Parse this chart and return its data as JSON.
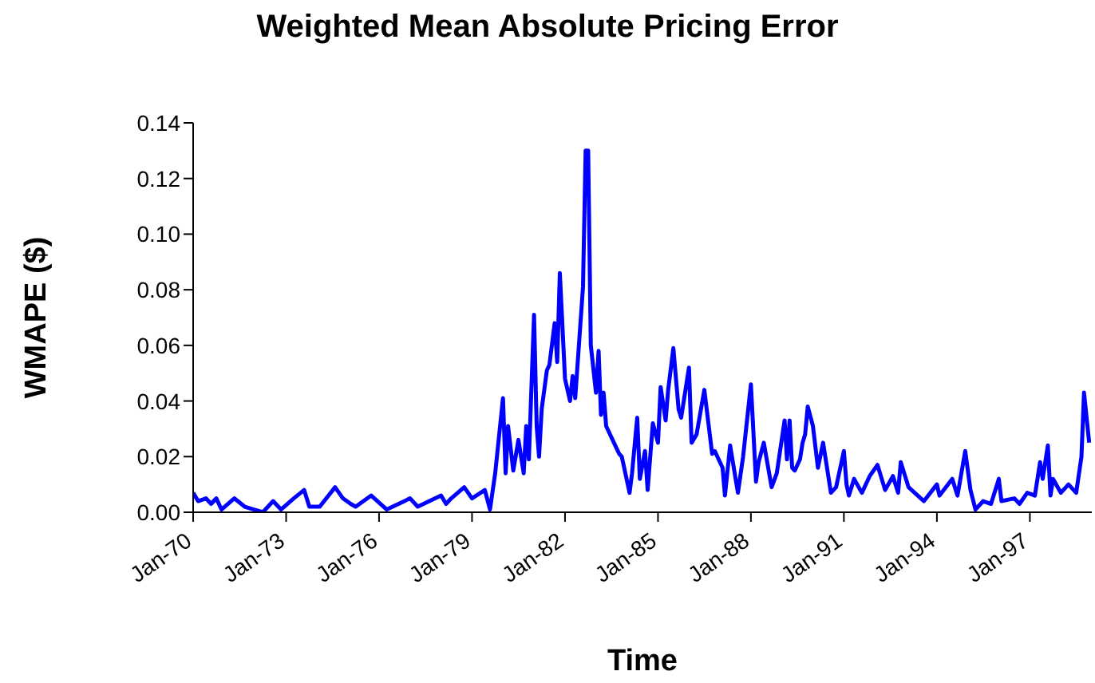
{
  "chart_data": {
    "type": "line",
    "title": "Weighted Mean Absolute Pricing Error",
    "xlabel": "Time",
    "ylabel": "WMAPE ($)",
    "x": [
      "1970-01",
      "1970-03",
      "1970-06",
      "1970-08",
      "1970-10",
      "1970-12",
      "1971-05",
      "1971-09",
      "1972-04",
      "1972-08",
      "1972-11",
      "1973-04",
      "1973-08",
      "1973-10",
      "1974-02",
      "1974-08",
      "1974-11",
      "1975-02",
      "1975-04",
      "1975-10",
      "1976-04",
      "1977-01",
      "1977-04",
      "1978-01",
      "1978-03",
      "1978-05",
      "1978-10",
      "1979-01",
      "1979-06",
      "1979-08",
      "1979-10",
      "1980-01",
      "1980-02",
      "1980-03",
      "1980-05",
      "1980-07",
      "1980-09",
      "1980-10",
      "1980-11",
      "1981-01",
      "1981-02",
      "1981-03",
      "1981-04",
      "1981-06",
      "1981-07",
      "1981-09",
      "1981-10",
      "1981-11",
      "1982-01",
      "1982-03",
      "1982-04",
      "1982-05",
      "1982-08",
      "1982-09",
      "1982-10",
      "1982-11",
      "1983-01",
      "1983-02",
      "1983-03",
      "1983-04",
      "1983-05",
      "1983-10",
      "1983-11",
      "1984-02",
      "1984-03",
      "1984-05",
      "1984-06",
      "1984-08",
      "1984-09",
      "1984-11",
      "1985-01",
      "1985-02",
      "1985-04",
      "1985-05",
      "1985-07",
      "1985-09",
      "1985-10",
      "1986-01",
      "1986-02",
      "1986-04",
      "1986-07",
      "1986-10",
      "1986-11",
      "1987-02",
      "1987-03",
      "1987-05",
      "1987-08",
      "1987-10",
      "1988-01",
      "1988-03",
      "1988-04",
      "1988-06",
      "1988-09",
      "1988-11",
      "1989-02",
      "1989-03",
      "1989-04",
      "1989-05",
      "1989-06",
      "1989-08",
      "1989-09",
      "1989-10",
      "1989-11",
      "1990-01",
      "1990-03",
      "1990-05",
      "1990-08",
      "1990-10",
      "1991-01",
      "1991-02",
      "1991-03",
      "1991-05",
      "1991-08",
      "1991-11",
      "1992-02",
      "1992-05",
      "1992-08",
      "1992-10",
      "1992-11",
      "1993-02",
      "1993-08",
      "1994-01",
      "1994-02",
      "1994-07",
      "1994-09",
      "1994-12",
      "1995-02",
      "1995-04",
      "1995-07",
      "1995-10",
      "1996-01",
      "1996-02",
      "1996-07",
      "1996-09",
      "1996-12",
      "1997-03",
      "1997-05",
      "1997-06",
      "1997-08",
      "1997-09",
      "1997-10",
      "1998-01",
      "1998-04",
      "1998-07",
      "1998-09",
      "1998-10",
      "1998-12"
    ],
    "series": [
      {
        "color": "#0000ff",
        "values": [
          0.007,
          0.004,
          0.005,
          0.003,
          0.005,
          0.001,
          0.005,
          0.002,
          0.0,
          0.004,
          0.001,
          0.005,
          0.008,
          0.002,
          0.002,
          0.009,
          0.005,
          0.003,
          0.002,
          0.006,
          0.001,
          0.005,
          0.002,
          0.006,
          0.003,
          0.005,
          0.009,
          0.005,
          0.008,
          0.001,
          0.014,
          0.041,
          0.014,
          0.031,
          0.015,
          0.026,
          0.014,
          0.031,
          0.019,
          0.071,
          0.031,
          0.02,
          0.037,
          0.051,
          0.053,
          0.068,
          0.054,
          0.086,
          0.048,
          0.04,
          0.049,
          0.041,
          0.081,
          0.13,
          0.13,
          0.06,
          0.043,
          0.058,
          0.035,
          0.043,
          0.031,
          0.021,
          0.02,
          0.007,
          0.014,
          0.034,
          0.012,
          0.022,
          0.008,
          0.032,
          0.025,
          0.045,
          0.033,
          0.044,
          0.059,
          0.037,
          0.034,
          0.052,
          0.025,
          0.028,
          0.044,
          0.021,
          0.022,
          0.016,
          0.006,
          0.024,
          0.007,
          0.02,
          0.046,
          0.011,
          0.018,
          0.025,
          0.009,
          0.014,
          0.033,
          0.019,
          0.033,
          0.016,
          0.015,
          0.019,
          0.025,
          0.028,
          0.038,
          0.031,
          0.016,
          0.025,
          0.007,
          0.009,
          0.022,
          0.01,
          0.006,
          0.012,
          0.007,
          0.013,
          0.017,
          0.008,
          0.013,
          0.007,
          0.018,
          0.009,
          0.004,
          0.01,
          0.006,
          0.012,
          0.006,
          0.022,
          0.008,
          0.001,
          0.004,
          0.003,
          0.012,
          0.004,
          0.005,
          0.003,
          0.007,
          0.006,
          0.018,
          0.012,
          0.024,
          0.006,
          0.012,
          0.007,
          0.01,
          0.007,
          0.02,
          0.043,
          0.025
        ]
      }
    ],
    "xlim": [
      "1970-01",
      "1999-01"
    ],
    "xticks": [
      {
        "value": "1970-01",
        "label": "Jan-70"
      },
      {
        "value": "1973-01",
        "label": "Jan-73"
      },
      {
        "value": "1976-01",
        "label": "Jan-76"
      },
      {
        "value": "1979-01",
        "label": "Jan-79"
      },
      {
        "value": "1982-01",
        "label": "Jan-82"
      },
      {
        "value": "1985-01",
        "label": "Jan-85"
      },
      {
        "value": "1988-01",
        "label": "Jan-88"
      },
      {
        "value": "1991-01",
        "label": "Jan-91"
      },
      {
        "value": "1994-01",
        "label": "Jan-94"
      },
      {
        "value": "1997-01",
        "label": "Jan-97"
      }
    ],
    "ylim": [
      0,
      0.14
    ],
    "yticks": [
      {
        "value": 0,
        "label": "0.00"
      },
      0.02,
      0.04,
      0.06,
      0.08,
      {
        "value": 0.1,
        "label": "0.10"
      },
      0.12,
      0.14
    ]
  }
}
